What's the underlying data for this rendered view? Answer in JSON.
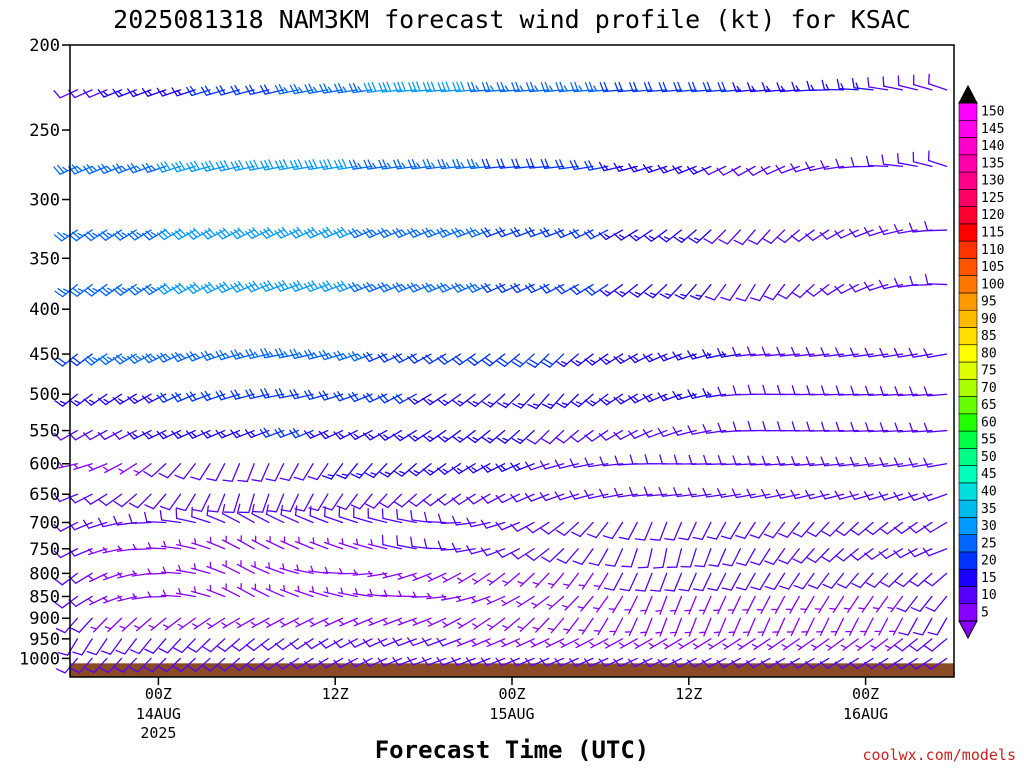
{
  "chart_data": {
    "type": "wind-barb time-pressure cross section",
    "title": "2025081318 NAM3KM forecast wind profile (kt) for KSAC",
    "xlabel": "Forecast Time (UTC)",
    "ylabel": "",
    "pressure_axis": {
      "scale": "log",
      "range": [
        1050,
        200
      ],
      "ticks": [
        200,
        250,
        300,
        350,
        400,
        450,
        500,
        550,
        600,
        650,
        700,
        750,
        800,
        850,
        900,
        950,
        1000
      ]
    },
    "time_axis": {
      "range_hours": [
        0,
        60
      ],
      "ticks": [
        {
          "hour": 6,
          "label": "00Z",
          "date": "14AUG",
          "year": "2025"
        },
        {
          "hour": 18,
          "label": "12Z",
          "date": "",
          "year": ""
        },
        {
          "hour": 30,
          "label": "00Z",
          "date": "15AUG",
          "year": ""
        },
        {
          "hour": 42,
          "label": "12Z",
          "date": "",
          "year": ""
        },
        {
          "hour": 54,
          "label": "00Z",
          "date": "16AUG",
          "year": ""
        }
      ]
    },
    "ground": {
      "color": "#8b4a26",
      "surface_pressure_hpa": 1013
    },
    "wind_speed_colorbar": {
      "unit": "kt",
      "levels": [
        5,
        10,
        15,
        20,
        25,
        30,
        35,
        40,
        45,
        50,
        55,
        60,
        65,
        70,
        75,
        80,
        85,
        90,
        95,
        100,
        105,
        110,
        115,
        120,
        125,
        130,
        135,
        140,
        145,
        150
      ],
      "colors": [
        "#8800ff",
        "#5500ff",
        "#1a00ff",
        "#0033ff",
        "#0066ff",
        "#0099ff",
        "#00bbee",
        "#00dddd",
        "#00ffbb",
        "#00ff88",
        "#00ff44",
        "#22ff00",
        "#66ff00",
        "#aaff00",
        "#ddff00",
        "#ffff00",
        "#ffdd00",
        "#ffbb00",
        "#ff9900",
        "#ff7700",
        "#ff5500",
        "#ff3300",
        "#ff0000",
        "#ff0033",
        "#ff0066",
        "#ff0088",
        "#ff00aa",
        "#ff00cc",
        "#ff00ee",
        "#ff00ff"
      ]
    },
    "barb_time_step_hours": 1,
    "pressure_levels_hpa": [
      1000,
      975,
      950,
      925,
      900,
      875,
      850,
      825,
      800,
      775,
      750,
      725,
      700,
      650,
      600,
      550,
      500,
      450,
      400,
      350,
      300,
      250,
      225
    ],
    "wind_profile_by_level": [
      {
        "p": 225,
        "dir_deg": [
          245,
          265,
          265,
          290
        ],
        "speed_kt": [
          10,
          30,
          15,
          10
        ],
        "break_hours": [
          0,
          24,
          50,
          60
        ]
      },
      {
        "p": 275,
        "dir_deg": [
          245,
          260,
          265,
          240,
          290
        ],
        "speed_kt": [
          25,
          30,
          20,
          10,
          10
        ],
        "break_hours": [
          0,
          15,
          33,
          47,
          60
        ]
      },
      {
        "p": 325,
        "dir_deg": [
          235,
          245,
          250,
          220,
          270
        ],
        "speed_kt": [
          25,
          30,
          20,
          10,
          10
        ],
        "break_hours": [
          0,
          15,
          33,
          47,
          60
        ]
      },
      {
        "p": 375,
        "dir_deg": [
          230,
          250,
          245,
          210,
          275
        ],
        "speed_kt": [
          25,
          30,
          20,
          10,
          10
        ],
        "break_hours": [
          0,
          15,
          33,
          47,
          60
        ]
      },
      {
        "p": 450,
        "dir_deg": [
          230,
          260,
          225,
          265,
          260
        ],
        "speed_kt": [
          22,
          25,
          18,
          12,
          10
        ],
        "break_hours": [
          0,
          15,
          33,
          47,
          60
        ]
      },
      {
        "p": 500,
        "dir_deg": [
          230,
          260,
          220,
          270,
          265
        ],
        "speed_kt": [
          15,
          20,
          15,
          12,
          10
        ],
        "break_hours": [
          0,
          15,
          33,
          47,
          60
        ]
      },
      {
        "p": 550,
        "dir_deg": [
          240,
          250,
          225,
          270,
          265
        ],
        "speed_kt": [
          10,
          18,
          12,
          10,
          10
        ],
        "break_hours": [
          0,
          15,
          33,
          47,
          60
        ]
      },
      {
        "p": 600,
        "dir_deg": [
          260,
          200,
          230,
          270,
          260
        ],
        "speed_kt": [
          5,
          10,
          15,
          10,
          10
        ],
        "break_hours": [
          0,
          12,
          24,
          40,
          60
        ]
      },
      {
        "p": 650,
        "dir_deg": [
          250,
          195,
          230,
          265,
          250
        ],
        "speed_kt": [
          8,
          8,
          10,
          10,
          10
        ],
        "break_hours": [
          0,
          12,
          24,
          40,
          60
        ]
      },
      {
        "p": 700,
        "dir_deg": [
          240,
          300,
          280,
          200,
          240
        ],
        "speed_kt": [
          8,
          8,
          8,
          8,
          10
        ],
        "break_hours": [
          0,
          12,
          24,
          40,
          60
        ]
      },
      {
        "p": 750,
        "dir_deg": [
          240,
          300,
          280,
          190,
          250
        ],
        "speed_kt": [
          8,
          5,
          8,
          8,
          10
        ],
        "break_hours": [
          0,
          12,
          24,
          40,
          60
        ]
      },
      {
        "p": 800,
        "dir_deg": [
          230,
          300,
          250,
          200,
          230
        ],
        "speed_kt": [
          8,
          5,
          5,
          8,
          8
        ],
        "break_hours": [
          0,
          12,
          24,
          40,
          60
        ]
      },
      {
        "p": 850,
        "dir_deg": [
          230,
          300,
          270,
          200,
          220
        ],
        "speed_kt": [
          8,
          5,
          5,
          5,
          8
        ],
        "break_hours": [
          0,
          12,
          24,
          40,
          60
        ]
      },
      {
        "p": 900,
        "dir_deg": [
          220,
          240,
          250,
          200,
          210
        ],
        "speed_kt": [
          8,
          5,
          5,
          5,
          8
        ],
        "break_hours": [
          0,
          12,
          24,
          40,
          60
        ]
      },
      {
        "p": 950,
        "dir_deg": [
          210,
          230,
          250,
          240,
          230
        ],
        "speed_kt": [
          10,
          8,
          8,
          5,
          8
        ],
        "break_hours": [
          0,
          12,
          24,
          40,
          60
        ]
      },
      {
        "p": 1000,
        "dir_deg": [
          220,
          230,
          250,
          245,
          235
        ],
        "speed_kt": [
          10,
          10,
          10,
          8,
          10
        ],
        "break_hours": [
          0,
          12,
          24,
          40,
          60
        ]
      }
    ]
  },
  "credit": "coolwx.com/models"
}
